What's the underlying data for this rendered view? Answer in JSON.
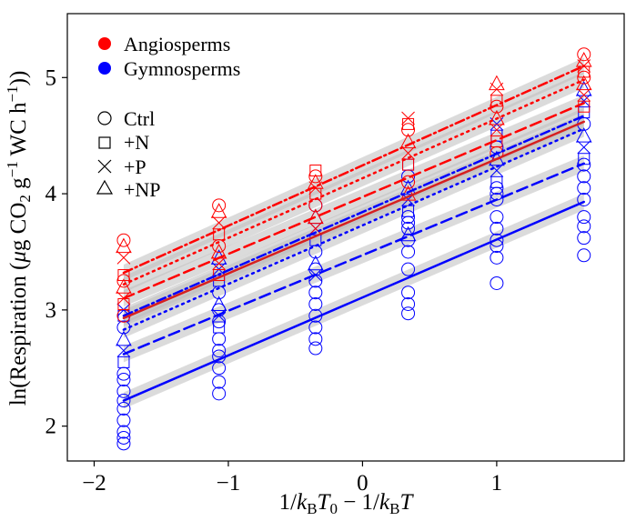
{
  "chart_data": {
    "type": "scatter",
    "title": "",
    "xlabel": "1/k_B T_0 − 1/k_B T",
    "ylabel": "ln(Respiration (μg CO2 g−1 WC h−1))",
    "xlim": [
      -2.2,
      1.95
    ],
    "ylim": [
      1.7,
      5.55
    ],
    "x_ticks": [
      -2,
      -1,
      0,
      1
    ],
    "x_tick_labels": [
      "−2",
      "−1",
      "0",
      "1"
    ],
    "y_ticks": [
      2,
      3,
      4,
      5
    ],
    "y_tick_labels": [
      "2",
      "3",
      "4",
      "5"
    ],
    "grid": false,
    "legend_position": "top-left",
    "legend_groups": [
      {
        "label": "Angiosperms",
        "color": "#ff0000"
      },
      {
        "label": "Gymnosperms",
        "color": "#0000ff"
      }
    ],
    "legend_treatments": [
      {
        "label": "Ctrl",
        "marker": "circle"
      },
      {
        "label": "+N",
        "marker": "square"
      },
      {
        "label": "+P",
        "marker": "x"
      },
      {
        "label": "+NP",
        "marker": "triangle"
      }
    ],
    "x_levels": [
      -1.78,
      -1.07,
      -0.35,
      0.34,
      1.0,
      1.65
    ],
    "points": {
      "gymnosperm_ctrl": {
        "color": "#0000ff",
        "marker": "circle",
        "y": [
          [
            1.85,
            1.9,
            1.95,
            2.05,
            2.15,
            2.22,
            2.3,
            2.4
          ],
          [
            2.28,
            2.38,
            2.5,
            2.6,
            2.65,
            2.75,
            2.9,
            3.0
          ],
          [
            2.67,
            2.75,
            2.85,
            2.95,
            3.05,
            3.15,
            3.25,
            3.35
          ],
          [
            2.97,
            3.05,
            3.15,
            3.35,
            3.5,
            3.6,
            3.7,
            3.8
          ],
          [
            3.23,
            3.45,
            3.55,
            3.6,
            3.7,
            3.8,
            3.95,
            4.05
          ],
          [
            3.47,
            3.62,
            3.72,
            3.8,
            3.95,
            4.05,
            4.15,
            4.25
          ]
        ]
      },
      "gymnosperm_other": {
        "color": "#0000ff",
        "marker": "mixed",
        "y": [
          [
            2.45,
            2.55,
            2.65,
            2.75,
            2.85,
            2.95,
            3.0
          ],
          [
            2.85,
            2.95,
            3.05,
            3.15,
            3.25,
            3.35,
            3.45
          ],
          [
            3.3,
            3.4,
            3.5,
            3.6,
            3.7,
            3.8,
            3.9
          ],
          [
            3.65,
            3.75,
            3.85,
            3.95,
            4.05,
            4.15,
            4.25
          ],
          [
            4.0,
            4.1,
            4.2,
            4.3,
            4.4,
            4.5,
            4.6
          ],
          [
            4.3,
            4.4,
            4.5,
            4.6,
            4.7,
            4.8,
            4.9
          ]
        ]
      },
      "angiosperm": {
        "color": "#ff0000",
        "marker": "mixed",
        "y": [
          [
            2.95,
            3.05,
            3.1,
            3.2,
            3.25,
            3.3,
            3.45,
            3.55,
            3.6
          ],
          [
            3.3,
            3.4,
            3.5,
            3.55,
            3.65,
            3.75,
            3.85,
            3.9
          ],
          [
            3.7,
            3.8,
            3.9,
            4.0,
            4.05,
            4.1,
            4.15,
            4.2
          ],
          [
            4.0,
            4.1,
            4.25,
            4.35,
            4.45,
            4.55,
            4.6,
            4.65
          ],
          [
            4.35,
            4.45,
            4.55,
            4.65,
            4.75,
            4.8,
            4.9,
            4.95
          ],
          [
            4.75,
            4.85,
            4.95,
            5.0,
            5.05,
            5.1,
            5.15,
            5.2
          ]
        ]
      }
    },
    "fit_lines": [
      {
        "group": "Gymnosperms",
        "treatment": "Ctrl",
        "color": "#0000ff",
        "dash": "solid",
        "x": [
          -1.78,
          1.65
        ],
        "y": [
          2.22,
          3.93
        ]
      },
      {
        "group": "Gymnosperms",
        "treatment": "+N",
        "color": "#0000ff",
        "dash": "dashed",
        "x": [
          -1.78,
          1.65
        ],
        "y": [
          2.62,
          4.26
        ]
      },
      {
        "group": "Gymnosperms",
        "treatment": "+P",
        "color": "#0000ff",
        "dash": "dotted",
        "x": [
          -1.78,
          1.65
        ],
        "y": [
          2.83,
          4.56
        ]
      },
      {
        "group": "Gymnosperms",
        "treatment": "+NP",
        "color": "#0000ff",
        "dash": "dotdash",
        "x": [
          -1.78,
          1.65
        ],
        "y": [
          2.95,
          4.67
        ]
      },
      {
        "group": "Angiosperms",
        "treatment": "Ctrl",
        "color": "#d62020",
        "dash": "solid",
        "x": [
          -1.78,
          1.65
        ],
        "y": [
          2.93,
          4.62
        ]
      },
      {
        "group": "Angiosperms",
        "treatment": "+N",
        "color": "#ff0000",
        "dash": "dashed",
        "x": [
          -1.78,
          1.65
        ],
        "y": [
          3.1,
          4.78
        ]
      },
      {
        "group": "Angiosperms",
        "treatment": "+P",
        "color": "#ff0000",
        "dash": "dotted",
        "x": [
          -1.78,
          1.65
        ],
        "y": [
          3.22,
          4.98
        ]
      },
      {
        "group": "Angiosperms",
        "treatment": "+NP",
        "color": "#ff0000",
        "dash": "dotdash",
        "x": [
          -1.78,
          1.65
        ],
        "y": [
          3.32,
          5.1
        ]
      }
    ],
    "confidence_band_color": "#bebebe"
  }
}
